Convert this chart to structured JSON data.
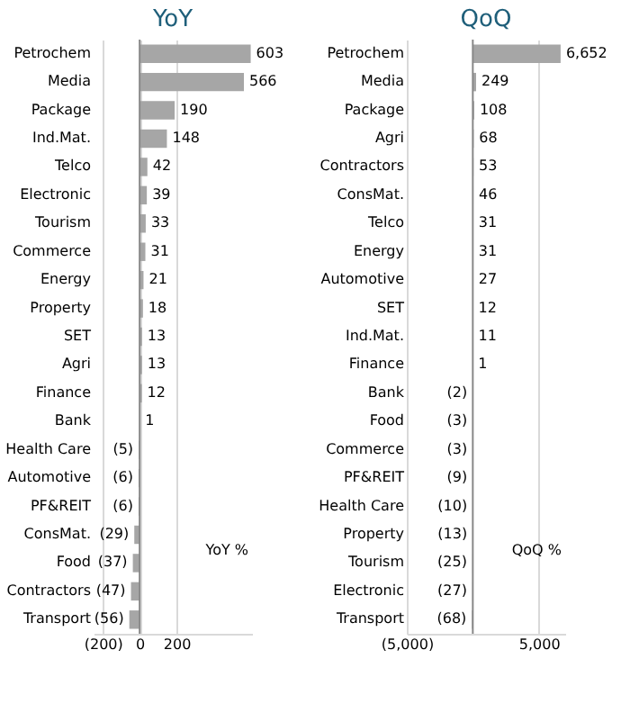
{
  "chart_data": [
    {
      "type": "bar",
      "title": "YoY",
      "orientation": "horizontal",
      "categories": [
        "Petrochem",
        "Media",
        "Package",
        "Ind.Mat.",
        "Telco",
        "Electronic",
        "Tourism",
        "Commerce",
        "Energy",
        "Property",
        "SET",
        "Agri",
        "Finance",
        "Bank",
        "Health Care",
        "Automotive",
        "PF&REIT",
        "ConsMat.",
        "Food",
        "Contractors",
        "Transport"
      ],
      "values": [
        603,
        566,
        190,
        148,
        42,
        39,
        33,
        31,
        21,
        18,
        13,
        13,
        12,
        1,
        -5,
        -6,
        -6,
        -29,
        -37,
        -47,
        -56
      ],
      "value_labels": [
        "603",
        "566",
        "190",
        "148",
        "42",
        "39",
        "33",
        "31",
        "21",
        "18",
        "13",
        "13",
        "12",
        "1",
        "(5)",
        "(6)",
        "(6)",
        "(29)",
        "(37)",
        "(47)",
        "(56)"
      ],
      "color": "#a6a6a6",
      "xlim": [
        -250,
        610
      ],
      "xticks": [
        {
          "value": -200,
          "label": "(200)"
        },
        0,
        200
      ],
      "grid": "x",
      "ref_lines": [
        {
          "axis": "x",
          "value": 0,
          "color": "#888888"
        }
      ],
      "annotations": [
        "YoY %"
      ]
    },
    {
      "type": "bar",
      "title": "QoQ",
      "orientation": "horizontal",
      "categories": [
        "Petrochem",
        "Media",
        "Package",
        "Agri",
        "Contractors",
        "ConsMat.",
        "Telco",
        "Energy",
        "Automotive",
        "SET",
        "Ind.Mat.",
        "Finance",
        "Bank",
        "Food",
        "Commerce",
        "PF&REIT",
        "Health Care",
        "Property",
        "Tourism",
        "Electronic",
        "Transport"
      ],
      "values": [
        6652,
        249,
        108,
        68,
        53,
        46,
        31,
        31,
        27,
        12,
        11,
        1,
        -2,
        -3,
        -3,
        -9,
        -10,
        -13,
        -25,
        -27,
        -68
      ],
      "value_labels": [
        "6,652",
        "249",
        "108",
        "68",
        "53",
        "46",
        "31",
        "31",
        "27",
        "12",
        "11",
        "1",
        "(2)",
        "(3)",
        "(3)",
        "(9)",
        "(10)",
        "(13)",
        "(25)",
        "(27)",
        "(68)"
      ],
      "color": "#a6a6a6",
      "xlim": [
        -5000,
        7000
      ],
      "xticks": [
        {
          "value": -5000,
          "label": "(5,000)"
        },
        {
          "value": 5000,
          "label": "5,000"
        }
      ],
      "grid": "x",
      "ref_lines": [
        {
          "axis": "x",
          "value": 0,
          "color": "#888888"
        }
      ],
      "annotations": [
        "QoQ %"
      ]
    }
  ]
}
